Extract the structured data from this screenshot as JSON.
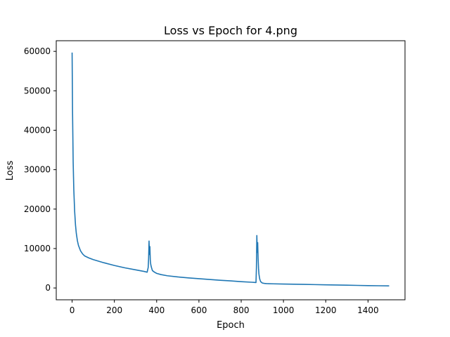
{
  "chart_data": {
    "type": "line",
    "title": "Loss vs Epoch for 4.png",
    "xlabel": "Epoch",
    "ylabel": "Loss",
    "xlim": [
      -75,
      1575
    ],
    "ylim": [
      -3000,
      62700
    ],
    "xticks": [
      0,
      200,
      400,
      600,
      800,
      1000,
      1200,
      1400
    ],
    "yticks": [
      0,
      10000,
      20000,
      30000,
      40000,
      50000,
      60000
    ],
    "grid": false,
    "line_color": "#1f77b4",
    "series": [
      {
        "x": [
          0,
          2,
          5,
          8,
          12,
          16,
          20,
          25,
          30,
          40,
          50,
          60,
          80,
          100,
          150,
          200,
          250,
          300,
          340,
          355,
          360,
          362,
          364,
          366,
          368,
          370,
          372,
          374,
          376,
          380,
          390,
          400,
          420,
          450,
          500,
          550,
          600,
          650,
          700,
          750,
          800,
          850,
          865,
          870,
          872,
          874,
          876,
          878,
          880,
          882,
          884,
          886,
          888,
          892,
          900,
          910,
          920,
          950,
          1000,
          1050,
          1100,
          1150,
          1200,
          1250,
          1300,
          1350,
          1400,
          1450,
          1500
        ],
        "y": [
          59700,
          45000,
          32000,
          25000,
          19500,
          16000,
          13800,
          12000,
          10800,
          9400,
          8600,
          8100,
          7600,
          7200,
          6400,
          5700,
          5100,
          4600,
          4200,
          4000,
          5200,
          7500,
          11900,
          8500,
          10500,
          7000,
          6000,
          5500,
          5100,
          4400,
          4000,
          3700,
          3400,
          3100,
          2800,
          2550,
          2350,
          2150,
          1950,
          1800,
          1600,
          1450,
          1400,
          1380,
          5000,
          13300,
          9000,
          11500,
          7500,
          5000,
          3500,
          2800,
          2200,
          1600,
          1250,
          1150,
          1100,
          1050,
          1000,
          950,
          900,
          850,
          800,
          750,
          700,
          650,
          600,
          560,
          520
        ]
      }
    ]
  }
}
